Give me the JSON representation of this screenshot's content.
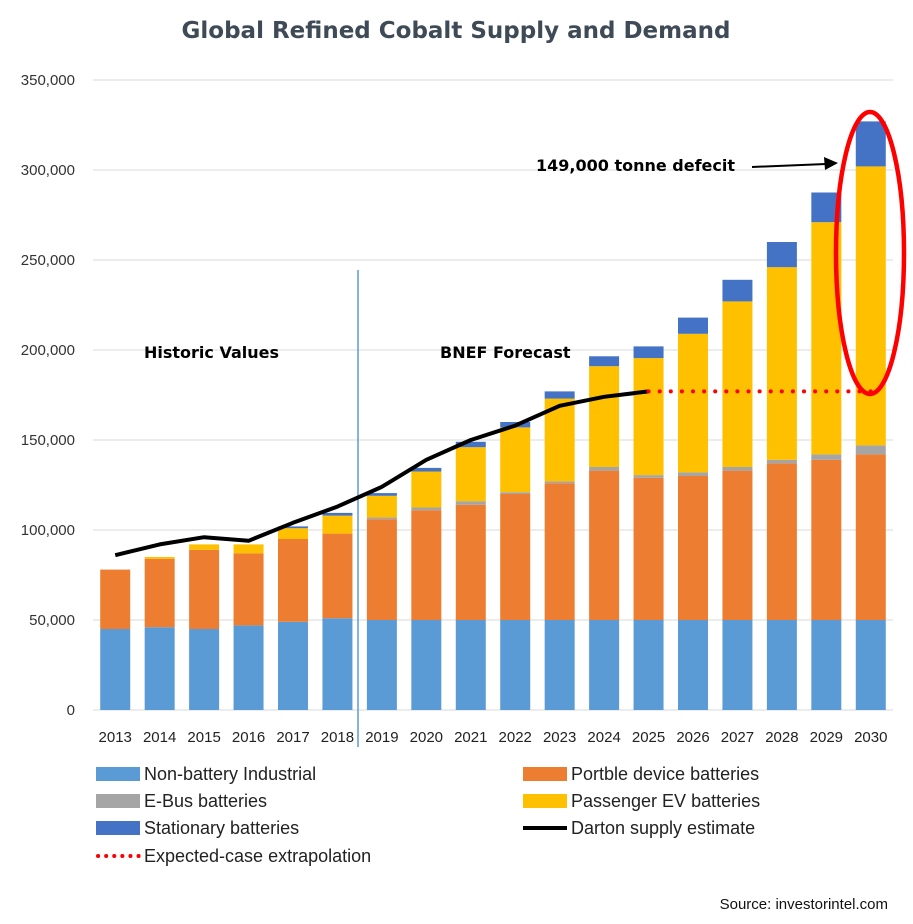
{
  "chart_data": {
    "type": "bar",
    "stacked": true,
    "title": "Global Refined Cobalt Supply and Demand",
    "xlabel": "",
    "ylabel": "",
    "ylim": [
      0,
      350000
    ],
    "y_ticks": [
      0,
      50000,
      100000,
      150000,
      200000,
      250000,
      300000,
      350000
    ],
    "y_tick_labels": [
      "0",
      "50,000",
      "100,000",
      "150,000",
      "200,000",
      "250,000",
      "300,000",
      "350,000"
    ],
    "grid": true,
    "legend_position": "bottom",
    "categories": [
      "2013",
      "2014",
      "2015",
      "2016",
      "2017",
      "2018",
      "2019",
      "2020",
      "2021",
      "2022",
      "2023",
      "2024",
      "2025",
      "2026",
      "2027",
      "2028",
      "2029",
      "2030"
    ],
    "series": [
      {
        "name": "Non-battery Industrial",
        "color": "#5b9bd5",
        "values": [
          45000,
          46000,
          45000,
          47000,
          49000,
          51000,
          50000,
          50000,
          50000,
          50000,
          50000,
          50000,
          50000,
          50000,
          50000,
          50000,
          50000,
          50000
        ]
      },
      {
        "name": "Portble device batteries",
        "color": "#ed7d31",
        "values": [
          33000,
          38000,
          44000,
          40000,
          46000,
          47000,
          56000,
          61000,
          64000,
          70000,
          76000,
          83000,
          79000,
          80000,
          83000,
          87000,
          89000,
          92000
        ]
      },
      {
        "name": "E-Bus batteries",
        "color": "#a5a5a5",
        "values": [
          0,
          0,
          0,
          0,
          0,
          0,
          1000,
          1500,
          2000,
          1000,
          1000,
          2000,
          1500,
          2000,
          2000,
          2000,
          3000,
          5000
        ]
      },
      {
        "name": "Passenger EV batteries",
        "color": "#ffc000",
        "values": [
          0,
          1000,
          3000,
          5000,
          6000,
          10000,
          12000,
          20000,
          30000,
          36000,
          46000,
          56000,
          65000,
          77000,
          92000,
          107000,
          129000,
          155000
        ]
      },
      {
        "name": "Stationary batteries",
        "color": "#4472c4",
        "values": [
          0,
          0,
          0,
          0,
          1000,
          1500,
          1500,
          2000,
          3000,
          3000,
          4000,
          5500,
          6500,
          9000,
          12000,
          14000,
          16500,
          25000
        ]
      }
    ],
    "lines": [
      {
        "name": "Darton supply estimate",
        "color": "#000000",
        "x": [
          "2013",
          "2014",
          "2015",
          "2016",
          "2017",
          "2018",
          "2019",
          "2020",
          "2021",
          "2022",
          "2023",
          "2024",
          "2025"
        ],
        "values": [
          86000,
          92000,
          96000,
          94000,
          104000,
          113000,
          124000,
          139000,
          150000,
          158000,
          169000,
          174000,
          177000
        ]
      },
      {
        "name": "Expected-case extrapolation",
        "color": "#ff0000",
        "style": "dotted",
        "x": [
          "2025",
          "2030"
        ],
        "values": [
          177000,
          177000
        ]
      }
    ],
    "annotations": {
      "historic": "Historic Values",
      "forecast": "BNEF Forecast",
      "deficit": "149,000 tonne defecit"
    }
  },
  "source": "Source: investorintel.com"
}
